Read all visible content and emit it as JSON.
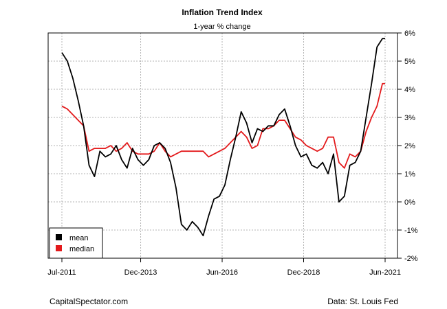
{
  "chart_data": {
    "type": "line",
    "title": "Inflation Trend Index",
    "subtitle": "1-year % change",
    "x_ticks": [
      "Jul-2011",
      "Dec-2013",
      "Jun-2016",
      "Dec-2018",
      "Jun-2021"
    ],
    "x_tick_dates": [
      "2011-07",
      "2013-12",
      "2016-06",
      "2018-12",
      "2021-06"
    ],
    "xlim": [
      "2011-07",
      "2021-06"
    ],
    "y_ticks": [
      "6%",
      "5%",
      "4%",
      "3%",
      "2%",
      "1%",
      "0%",
      "-1%",
      "-2%"
    ],
    "ylim": [
      -2,
      6
    ],
    "grid": true,
    "legend": {
      "placement": "bottom-left"
    },
    "series": [
      {
        "name": "mean",
        "color": "#000000",
        "x": [
          "2011-07",
          "2011-09",
          "2011-11",
          "2012-01",
          "2012-03",
          "2012-05",
          "2012-07",
          "2012-09",
          "2012-11",
          "2013-01",
          "2013-03",
          "2013-05",
          "2013-07",
          "2013-09",
          "2013-11",
          "2014-01",
          "2014-03",
          "2014-05",
          "2014-07",
          "2014-09",
          "2014-11",
          "2015-01",
          "2015-03",
          "2015-05",
          "2015-07",
          "2015-09",
          "2015-11",
          "2016-01",
          "2016-03",
          "2016-05",
          "2016-07",
          "2016-09",
          "2016-11",
          "2017-01",
          "2017-03",
          "2017-05",
          "2017-07",
          "2017-09",
          "2017-11",
          "2018-01",
          "2018-03",
          "2018-05",
          "2018-07",
          "2018-09",
          "2018-11",
          "2019-01",
          "2019-03",
          "2019-05",
          "2019-07",
          "2019-09",
          "2019-11",
          "2020-01",
          "2020-03",
          "2020-05",
          "2020-07",
          "2020-09",
          "2020-11",
          "2021-01",
          "2021-03",
          "2021-05",
          "2021-06"
        ],
        "values": [
          5.3,
          5.0,
          4.4,
          3.6,
          2.7,
          1.3,
          0.9,
          1.8,
          1.6,
          1.7,
          2.0,
          1.5,
          1.2,
          1.9,
          1.5,
          1.3,
          1.5,
          2.0,
          2.1,
          1.9,
          1.4,
          0.5,
          -0.8,
          -1.0,
          -0.7,
          -0.9,
          -1.2,
          -0.5,
          0.1,
          0.2,
          0.6,
          1.5,
          2.3,
          3.2,
          2.8,
          2.1,
          2.6,
          2.5,
          2.7,
          2.7,
          3.1,
          3.3,
          2.7,
          2.0,
          1.6,
          1.7,
          1.3,
          1.2,
          1.4,
          1.0,
          1.7,
          0.0,
          0.2,
          1.3,
          1.4,
          1.8,
          3.0,
          4.2,
          5.5,
          5.8,
          5.8
        ]
      },
      {
        "name": "median",
        "color": "#e31a1c",
        "x": [
          "2011-07",
          "2011-09",
          "2011-11",
          "2012-01",
          "2012-03",
          "2012-05",
          "2012-07",
          "2012-09",
          "2012-11",
          "2013-01",
          "2013-03",
          "2013-05",
          "2013-07",
          "2013-09",
          "2013-11",
          "2014-01",
          "2014-03",
          "2014-05",
          "2014-07",
          "2014-09",
          "2014-11",
          "2015-01",
          "2015-03",
          "2015-05",
          "2015-07",
          "2015-09",
          "2015-11",
          "2016-01",
          "2016-03",
          "2016-05",
          "2016-07",
          "2016-09",
          "2016-11",
          "2017-01",
          "2017-03",
          "2017-05",
          "2017-07",
          "2017-09",
          "2017-11",
          "2018-01",
          "2018-03",
          "2018-05",
          "2018-07",
          "2018-09",
          "2018-11",
          "2019-01",
          "2019-03",
          "2019-05",
          "2019-07",
          "2019-09",
          "2019-11",
          "2020-01",
          "2020-03",
          "2020-05",
          "2020-07",
          "2020-09",
          "2020-11",
          "2021-01",
          "2021-03",
          "2021-05",
          "2021-06"
        ],
        "values": [
          3.4,
          3.3,
          3.1,
          2.9,
          2.7,
          1.8,
          1.9,
          1.9,
          1.9,
          2.0,
          1.8,
          1.9,
          2.1,
          1.8,
          1.7,
          1.7,
          1.7,
          1.8,
          2.1,
          1.8,
          1.6,
          1.7,
          1.8,
          1.8,
          1.8,
          1.8,
          1.8,
          1.6,
          1.7,
          1.8,
          1.9,
          2.1,
          2.3,
          2.5,
          2.3,
          1.9,
          2.0,
          2.6,
          2.6,
          2.7,
          2.9,
          2.9,
          2.6,
          2.3,
          2.2,
          2.0,
          1.9,
          1.8,
          1.9,
          2.3,
          2.3,
          1.4,
          1.2,
          1.7,
          1.6,
          1.8,
          2.5,
          3.0,
          3.4,
          4.2,
          4.2
        ]
      }
    ]
  },
  "footer": {
    "left": "CapitalSpectator.com",
    "right": "Data: St. Louis Fed"
  }
}
